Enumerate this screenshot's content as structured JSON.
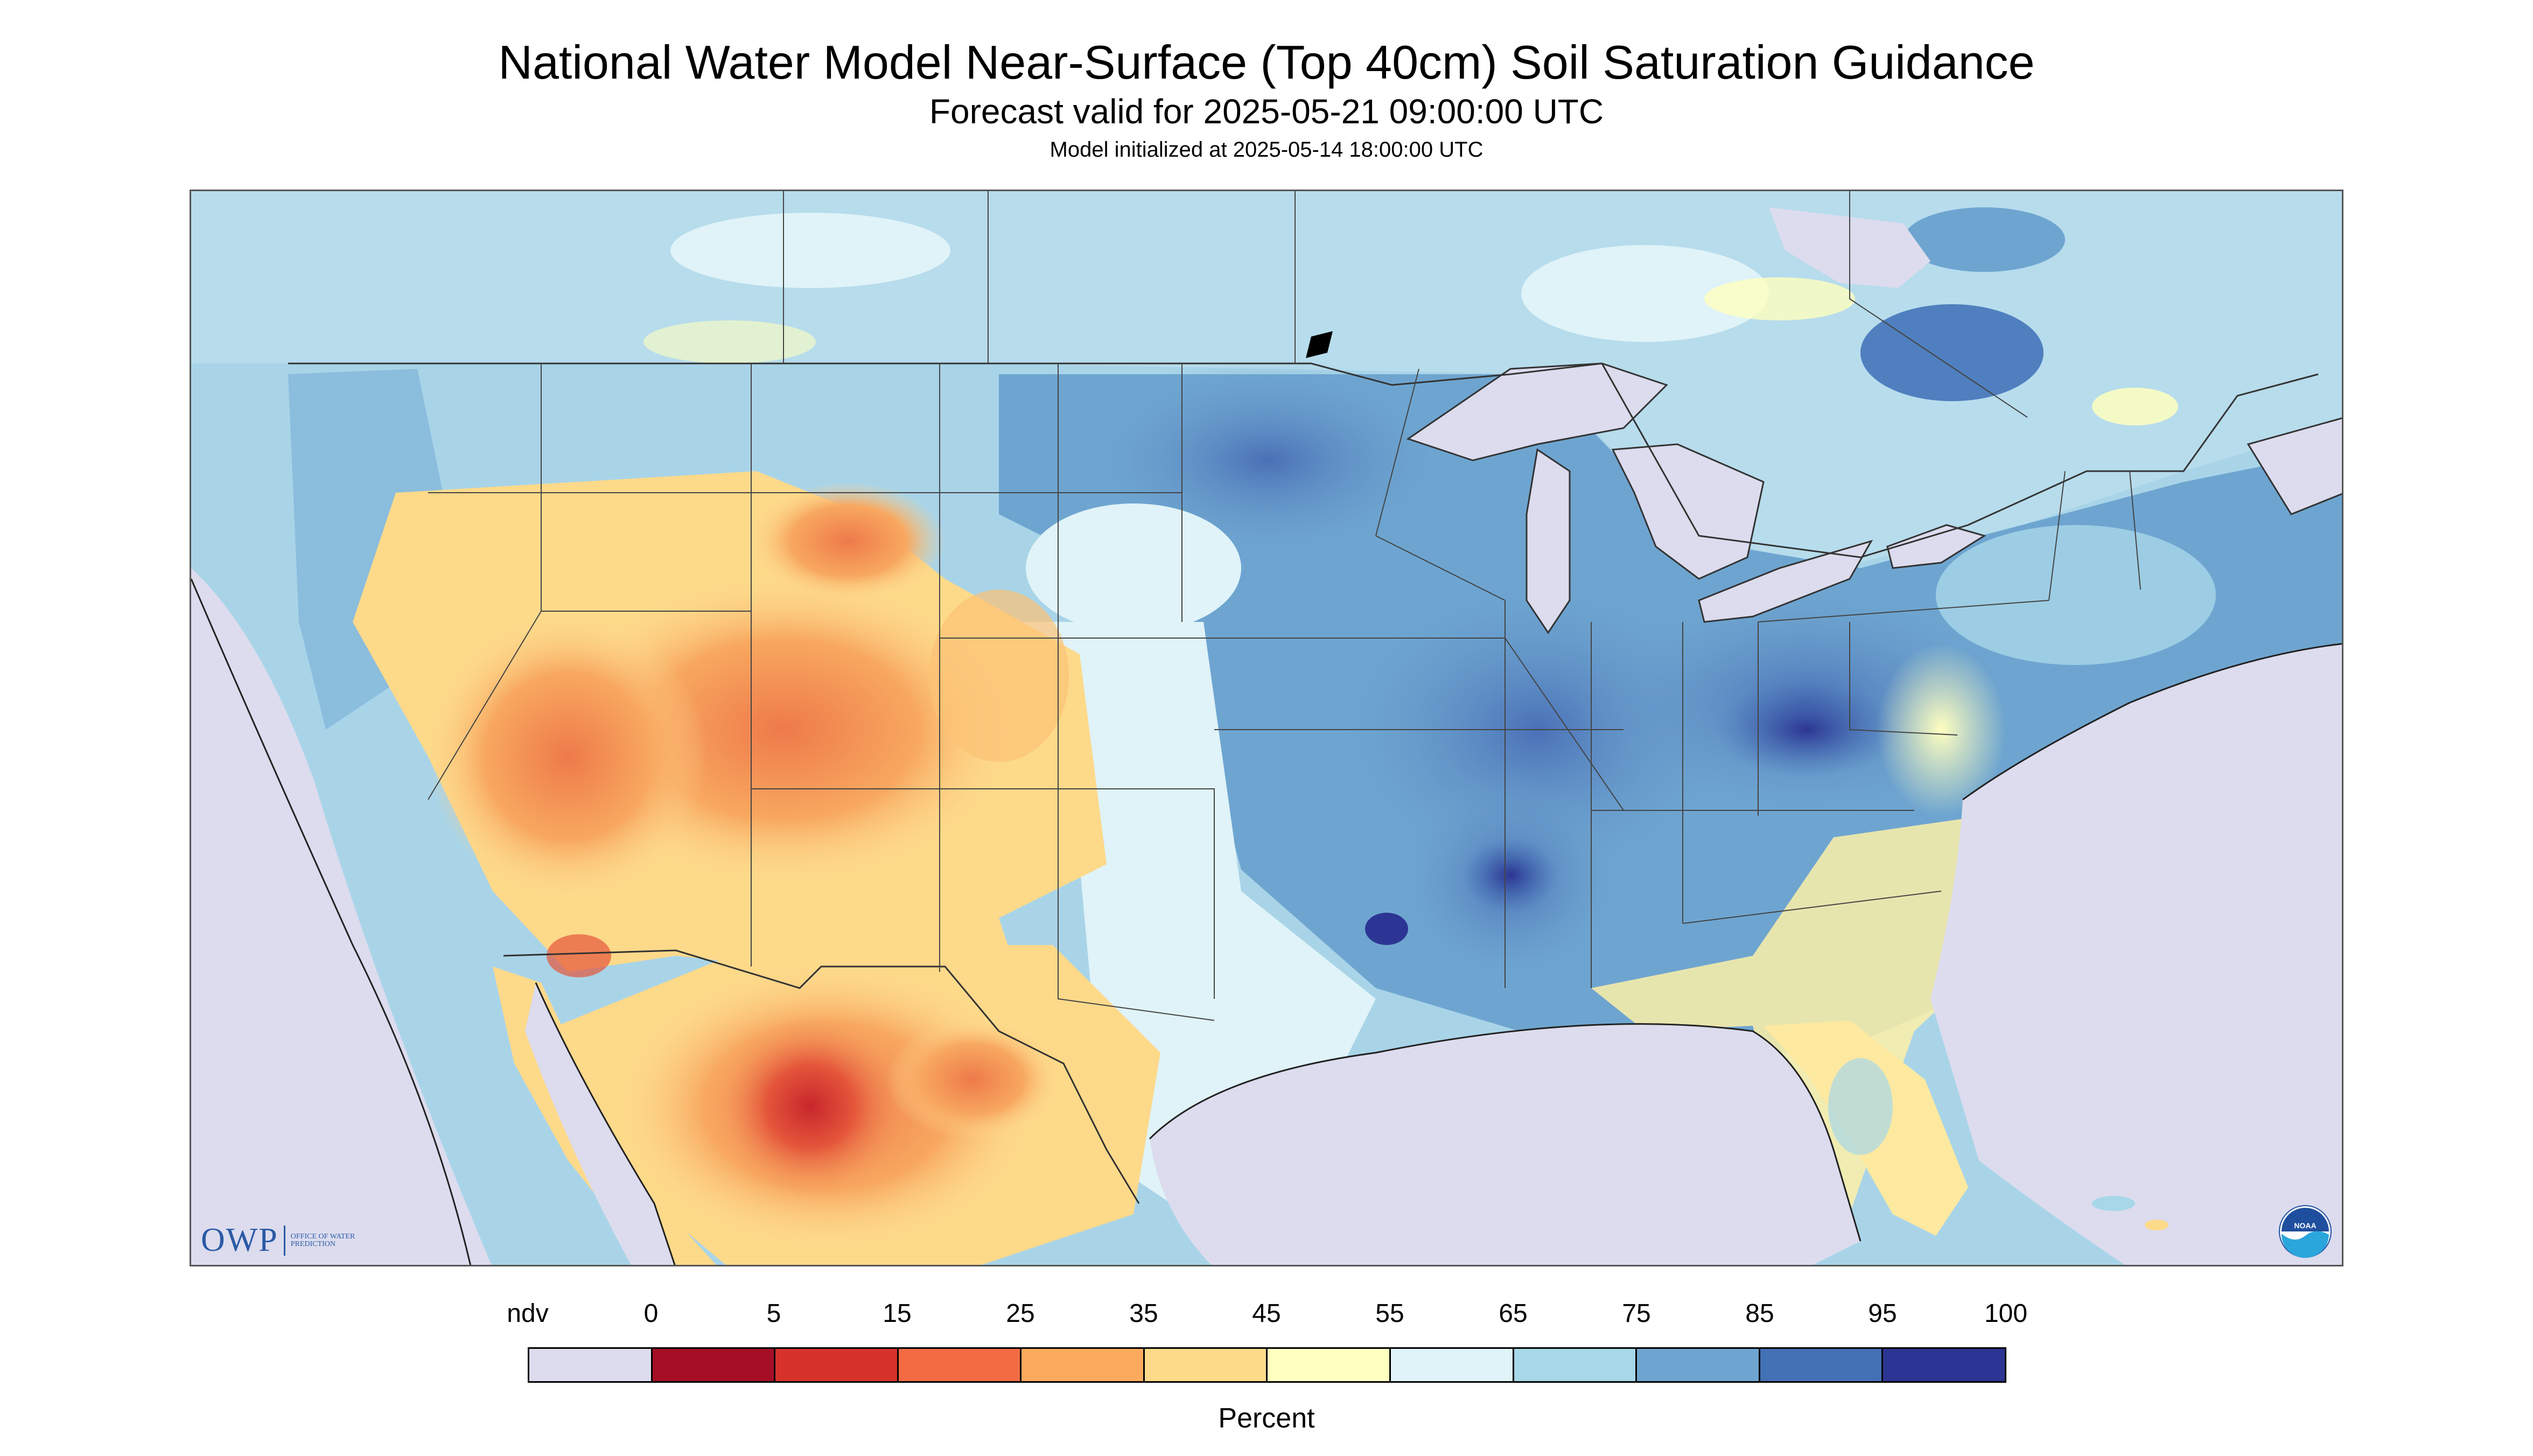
{
  "header": {
    "title": "National Water Model Near-Surface (Top 40cm) Soil Saturation Guidance",
    "subtitle": "Forecast valid for 2025-05-21 09:00:00 UTC",
    "init": "Model initialized at 2025-05-14 18:00:00 UTC"
  },
  "logos": {
    "owp_text": "OWP",
    "owp_small": "OFFICE OF WATER PREDICTION",
    "noaa_text": "NOAA"
  },
  "legend": {
    "labels": [
      "ndv",
      "0",
      "5",
      "15",
      "25",
      "35",
      "45",
      "55",
      "65",
      "75",
      "85",
      "95",
      "100"
    ],
    "colors": [
      "#dcdcee",
      "#a50f26",
      "#d6322a",
      "#f26b43",
      "#fcab5e",
      "#fdd98a",
      "#ffffbf",
      "#dff3f8",
      "#a7d7e8",
      "#6ea5d0",
      "#4371b5",
      "#2c3593"
    ],
    "unit": "Percent"
  },
  "map": {
    "nodata_color": "#dcdcee",
    "water_color": "#dcdcee",
    "border_color": "#333333"
  }
}
